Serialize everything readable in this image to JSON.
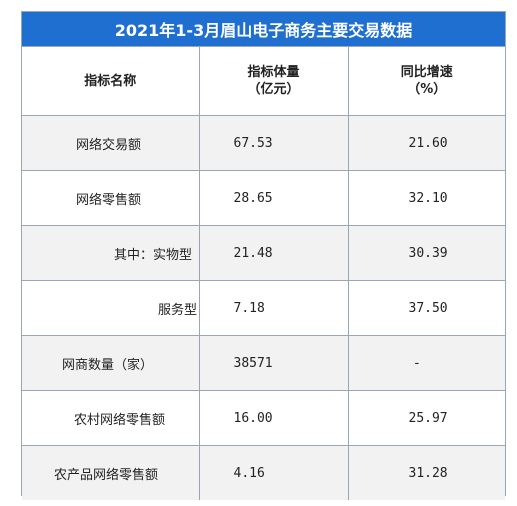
{
  "title": "2021年1-3月眉山电子商务主要交易数据",
  "headers": {
    "name": "指标名称",
    "value_line1": "指标体量",
    "value_line2": "（亿元）",
    "growth_line1": "同比增速",
    "growth_line2": "（%）"
  },
  "rows": [
    {
      "name": "网络交易额",
      "value": "67.53",
      "growth": "21.60"
    },
    {
      "name": "网络零售额",
      "value": "28.65",
      "growth": "32.10"
    },
    {
      "name": "其中：实物型",
      "value": "21.48",
      "growth": "30.39"
    },
    {
      "name": "服务型",
      "value": "7.18",
      "growth": "37.50"
    },
    {
      "name": "网商数量（家）",
      "value": "38571",
      "growth": "-"
    },
    {
      "name": "农村网络零售额",
      "value": "16.00",
      "growth": "25.97"
    },
    {
      "name": "农产品网络零售额",
      "value": "4.16",
      "growth": "31.28"
    }
  ],
  "colors": {
    "title_bg": "#1f6fd1",
    "shade": "#f2f2f2",
    "border": "#9aa6b2"
  }
}
